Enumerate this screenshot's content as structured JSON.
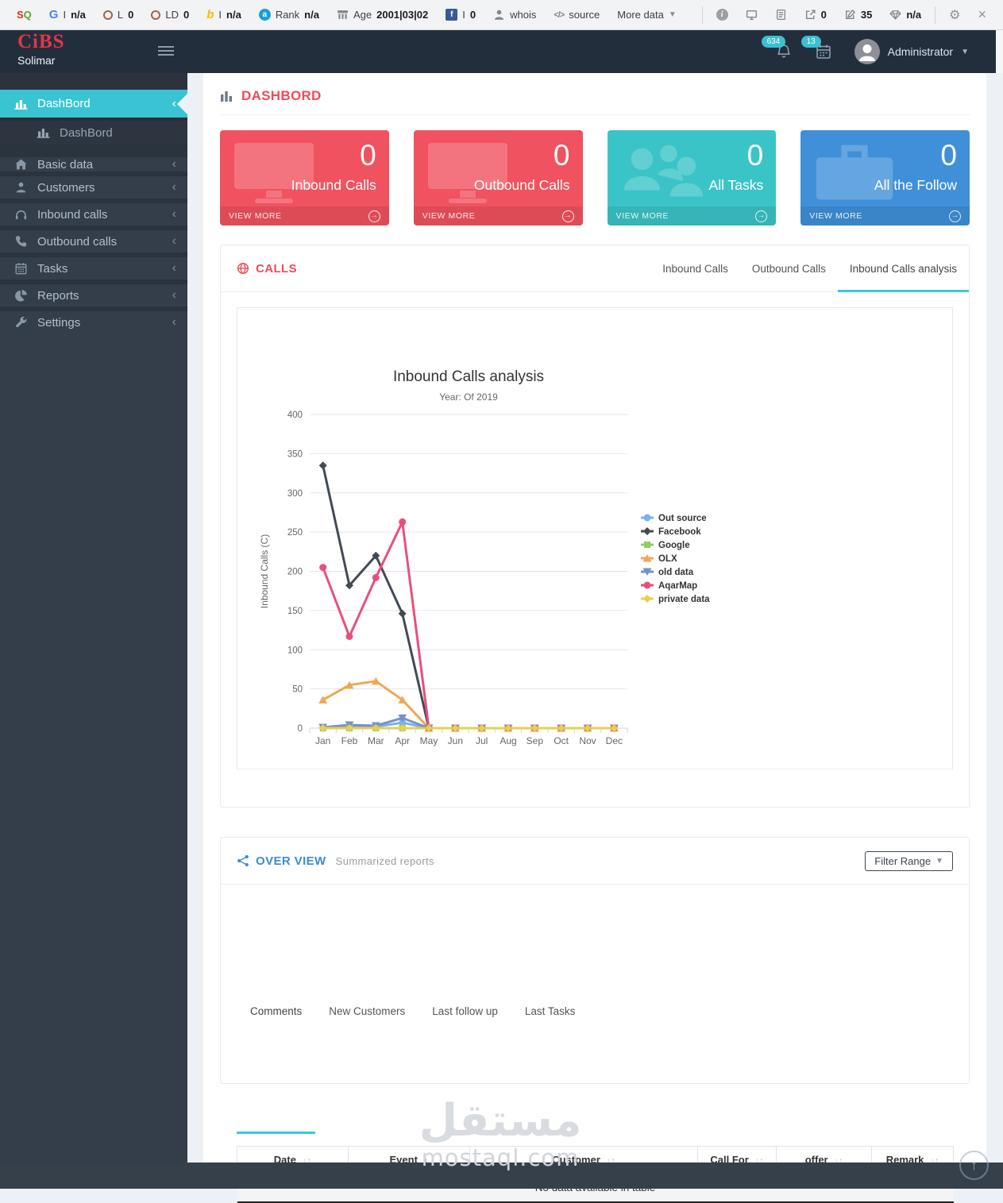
{
  "browser_toolbar": {
    "left_items": [
      {
        "icon": "seoquake",
        "label": "",
        "value": ""
      },
      {
        "icon": "google",
        "label": "I",
        "value": "n/a"
      },
      {
        "icon": "ring",
        "label": "L",
        "value": "0"
      },
      {
        "icon": "ring",
        "label": "LD",
        "value": "0"
      },
      {
        "icon": "bing",
        "label": "I",
        "value": "n/a"
      },
      {
        "icon": "alexa",
        "label": "Rank",
        "value": "n/a"
      },
      {
        "icon": "archive",
        "label": "Age",
        "value": "2001|03|02"
      },
      {
        "icon": "facebook",
        "label": "I",
        "value": "0"
      },
      {
        "icon": "person",
        "label": "whois",
        "value": ""
      },
      {
        "icon": "code",
        "label": "source",
        "value": ""
      },
      {
        "icon": "none",
        "label": "More data",
        "value": "",
        "caret": true
      }
    ],
    "right_items": [
      {
        "icon": "info",
        "value": ""
      },
      {
        "icon": "monitor",
        "value": ""
      },
      {
        "icon": "doc",
        "value": ""
      },
      {
        "icon": "external",
        "value": "0"
      },
      {
        "icon": "edit",
        "value": "35"
      },
      {
        "icon": "diamond",
        "value": "n/a"
      }
    ],
    "window_items": [
      {
        "icon": "gear"
      },
      {
        "icon": "close"
      }
    ]
  },
  "header": {
    "logo_title": "CiBS",
    "logo_subtitle": "Solimar",
    "notifications_badge": "634",
    "calendar_badge": "13",
    "user_name": "Administrator"
  },
  "sidebar": {
    "items": [
      {
        "label": "DashBord",
        "icon": "bar-chart",
        "active": true,
        "chevron": true
      },
      {
        "label": "DashBord",
        "icon": "bar-chart",
        "sub": true,
        "chevron": false
      },
      {
        "label": "Basic data",
        "icon": "home",
        "after_sub": true,
        "chevron": true
      },
      {
        "label": "Customers",
        "icon": "user",
        "chevron": true
      },
      {
        "label": "Inbound calls",
        "icon": "headphones",
        "chevron": true
      },
      {
        "label": "Outbound calls",
        "icon": "phone",
        "chevron": true
      },
      {
        "label": "Tasks",
        "icon": "calendar",
        "chevron": true
      },
      {
        "label": "Reports",
        "icon": "pie",
        "chevron": true
      },
      {
        "label": "Settings",
        "icon": "wrench",
        "chevron": true
      }
    ]
  },
  "page": {
    "title": "DASHBORD"
  },
  "stat_cards": [
    {
      "value": "0",
      "label": "Inbound Calls",
      "view_more": "VIEW MORE",
      "color": "red",
      "icon": "desktop",
      "hex": "#f0525f"
    },
    {
      "value": "0",
      "label": "Outbound Calls",
      "view_more": "VIEW MORE",
      "color": "red",
      "icon": "desktop",
      "hex": "#f0525f"
    },
    {
      "value": "0",
      "label": "All Tasks",
      "view_more": "VIEW MORE",
      "color": "teal",
      "icon": "users",
      "hex": "#3bc4c7"
    },
    {
      "value": "0",
      "label": "All the Follow",
      "view_more": "VIEW MORE",
      "color": "blue",
      "icon": "briefcase",
      "hex": "#3f90d9"
    }
  ],
  "calls_panel": {
    "title": "CALLS",
    "tabs": [
      {
        "label": "Inbound Calls",
        "active": false
      },
      {
        "label": "Outbound Calls",
        "active": false
      },
      {
        "label": "Inbound Calls analysis",
        "active": true
      }
    ]
  },
  "chart_data": {
    "type": "line",
    "title": "Inbound Calls analysis",
    "subtitle": "Year: Of 2019",
    "ylabel": "Inbound Calls (C)",
    "ylim": [
      0,
      400
    ],
    "ytick_step": 50,
    "grid": true,
    "legend_position": "right",
    "categories": [
      "Jan",
      "Feb",
      "Mar",
      "Apr",
      "May",
      "Jun",
      "Jul",
      "Aug",
      "Sep",
      "Oct",
      "Nov",
      "Dec"
    ],
    "series": [
      {
        "name": "Out source",
        "color": "#7ab3e8",
        "marker": "circle",
        "values": [
          0,
          2,
          2,
          7,
          0,
          0,
          0,
          0,
          0,
          0,
          0,
          0
        ]
      },
      {
        "name": "Facebook",
        "color": "#434a54",
        "marker": "diamond",
        "values": [
          335,
          182,
          220,
          146,
          0,
          0,
          0,
          0,
          0,
          0,
          0,
          0
        ]
      },
      {
        "name": "Google",
        "color": "#8fce63",
        "marker": "square",
        "values": [
          0,
          0,
          0,
          0,
          0,
          0,
          0,
          0,
          0,
          0,
          0,
          0
        ]
      },
      {
        "name": "OLX",
        "color": "#f2a654",
        "marker": "triangle",
        "values": [
          36,
          55,
          60,
          36,
          0,
          0,
          0,
          0,
          0,
          0,
          0,
          0
        ]
      },
      {
        "name": "old data",
        "color": "#7b8fc9",
        "marker": "triangle-down",
        "values": [
          1,
          4,
          3,
          13,
          0,
          0,
          0,
          0,
          0,
          0,
          0,
          0
        ]
      },
      {
        "name": "AqarMap",
        "color": "#e8507c",
        "marker": "circle",
        "values": [
          205,
          117,
          192,
          263,
          0,
          0,
          0,
          0,
          0,
          0,
          0,
          0
        ]
      },
      {
        "name": "private data",
        "color": "#e6d14e",
        "marker": "diamond",
        "values": [
          0,
          0,
          0,
          0,
          0,
          0,
          0,
          0,
          0,
          0,
          0,
          0
        ]
      }
    ]
  },
  "overview_panel": {
    "title": "OVER VIEW",
    "subtitle": "Summarized reports",
    "filter_button": "Filter Range",
    "tabs": [
      {
        "label": "Comments",
        "active": true
      },
      {
        "label": "New Customers",
        "active": false
      },
      {
        "label": "Last follow up",
        "active": false
      },
      {
        "label": "Last Tasks",
        "active": false
      }
    ]
  },
  "table": {
    "headers": [
      "Date",
      "Event",
      "Customer",
      "Call For",
      "offer",
      "Remark"
    ],
    "sorted_column": "Event",
    "empty_text": "No data available in table"
  },
  "watermark": {
    "arabic": "مستقل",
    "latin": "mostaql.com"
  },
  "colors": {
    "accent_teal": "#3bc8d6",
    "active_menu": "#3ac4d3",
    "heading_red": "#ee4b59",
    "overview_blue": "#3b8dd1",
    "header_bg": "#232e3d",
    "sidebar_bg": "#343e4a",
    "footer_bg": "#36404b",
    "page_bg": "#edf1f6"
  }
}
